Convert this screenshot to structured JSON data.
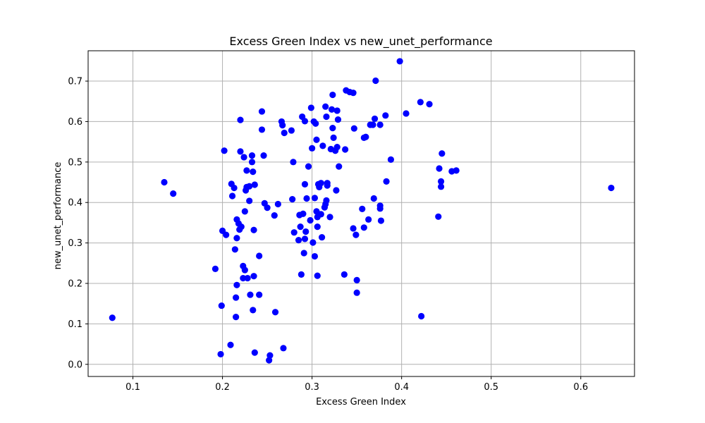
{
  "chart_data": {
    "type": "scatter",
    "title": "Excess Green Index vs new_unet_performance",
    "xlabel": "Excess Green Index",
    "ylabel": "new_unet_performance",
    "xlim": [
      0.05,
      0.66
    ],
    "ylim": [
      -0.03,
      0.775
    ],
    "xticks": [
      0.1,
      0.2,
      0.3,
      0.4,
      0.5,
      0.6
    ],
    "xtick_labels": [
      "0.1",
      "0.2",
      "0.3",
      "0.4",
      "0.5",
      "0.6"
    ],
    "yticks": [
      0.0,
      0.1,
      0.2,
      0.3,
      0.4,
      0.5,
      0.6,
      0.7
    ],
    "ytick_labels": [
      "0.0",
      "0.1",
      "0.2",
      "0.3",
      "0.4",
      "0.5",
      "0.6",
      "0.7"
    ],
    "grid": true,
    "marker_color": "#0000ff",
    "points": [
      [
        0.077,
        0.115
      ],
      [
        0.135,
        0.45
      ],
      [
        0.145,
        0.422
      ],
      [
        0.192,
        0.236
      ],
      [
        0.198,
        0.025
      ],
      [
        0.199,
        0.145
      ],
      [
        0.2,
        0.33
      ],
      [
        0.202,
        0.528
      ],
      [
        0.204,
        0.32
      ],
      [
        0.209,
        0.048
      ],
      [
        0.21,
        0.446
      ],
      [
        0.211,
        0.416
      ],
      [
        0.213,
        0.436
      ],
      [
        0.214,
        0.284
      ],
      [
        0.215,
        0.165
      ],
      [
        0.215,
        0.117
      ],
      [
        0.216,
        0.196
      ],
      [
        0.216,
        0.312
      ],
      [
        0.216,
        0.358
      ],
      [
        0.218,
        0.348
      ],
      [
        0.219,
        0.333
      ],
      [
        0.22,
        0.604
      ],
      [
        0.22,
        0.526
      ],
      [
        0.221,
        0.34
      ],
      [
        0.223,
        0.243
      ],
      [
        0.223,
        0.213
      ],
      [
        0.224,
        0.512
      ],
      [
        0.225,
        0.378
      ],
      [
        0.225,
        0.233
      ],
      [
        0.226,
        0.43
      ],
      [
        0.227,
        0.438
      ],
      [
        0.227,
        0.479
      ],
      [
        0.228,
        0.213
      ],
      [
        0.23,
        0.44
      ],
      [
        0.23,
        0.404
      ],
      [
        0.231,
        0.172
      ],
      [
        0.233,
        0.516
      ],
      [
        0.233,
        0.5
      ],
      [
        0.234,
        0.476
      ],
      [
        0.234,
        0.134
      ],
      [
        0.235,
        0.218
      ],
      [
        0.235,
        0.332
      ],
      [
        0.236,
        0.029
      ],
      [
        0.236,
        0.444
      ],
      [
        0.241,
        0.268
      ],
      [
        0.241,
        0.172
      ],
      [
        0.244,
        0.625
      ],
      [
        0.244,
        0.58
      ],
      [
        0.246,
        0.516
      ],
      [
        0.247,
        0.398
      ],
      [
        0.25,
        0.387
      ],
      [
        0.252,
        0.01
      ],
      [
        0.253,
        0.022
      ],
      [
        0.258,
        0.368
      ],
      [
        0.259,
        0.129
      ],
      [
        0.262,
        0.396
      ],
      [
        0.266,
        0.6
      ],
      [
        0.267,
        0.591
      ],
      [
        0.268,
        0.04
      ],
      [
        0.269,
        0.572
      ],
      [
        0.277,
        0.578
      ],
      [
        0.278,
        0.408
      ],
      [
        0.279,
        0.5
      ],
      [
        0.28,
        0.326
      ],
      [
        0.285,
        0.307
      ],
      [
        0.286,
        0.369
      ],
      [
        0.287,
        0.34
      ],
      [
        0.288,
        0.222
      ],
      [
        0.289,
        0.612
      ],
      [
        0.29,
        0.372
      ],
      [
        0.291,
        0.275
      ],
      [
        0.292,
        0.601
      ],
      [
        0.292,
        0.31
      ],
      [
        0.292,
        0.445
      ],
      [
        0.293,
        0.328
      ],
      [
        0.294,
        0.41
      ],
      [
        0.296,
        0.489
      ],
      [
        0.298,
        0.356
      ],
      [
        0.299,
        0.634
      ],
      [
        0.3,
        0.534
      ],
      [
        0.301,
        0.301
      ],
      [
        0.302,
        0.6
      ],
      [
        0.303,
        0.267
      ],
      [
        0.303,
        0.411
      ],
      [
        0.304,
        0.595
      ],
      [
        0.305,
        0.378
      ],
      [
        0.305,
        0.555
      ],
      [
        0.306,
        0.219
      ],
      [
        0.306,
        0.364
      ],
      [
        0.306,
        0.34
      ],
      [
        0.307,
        0.445
      ],
      [
        0.308,
        0.438
      ],
      [
        0.31,
        0.448
      ],
      [
        0.31,
        0.371
      ],
      [
        0.311,
        0.314
      ],
      [
        0.312,
        0.54
      ],
      [
        0.314,
        0.388
      ],
      [
        0.315,
        0.637
      ],
      [
        0.315,
        0.396
      ],
      [
        0.316,
        0.405
      ],
      [
        0.316,
        0.612
      ],
      [
        0.317,
        0.442
      ],
      [
        0.317,
        0.448
      ],
      [
        0.32,
        0.364
      ],
      [
        0.321,
        0.532
      ],
      [
        0.322,
        0.63
      ],
      [
        0.323,
        0.584
      ],
      [
        0.323,
        0.666
      ],
      [
        0.324,
        0.56
      ],
      [
        0.326,
        0.528
      ],
      [
        0.327,
        0.43
      ],
      [
        0.328,
        0.537
      ],
      [
        0.328,
        0.627
      ],
      [
        0.329,
        0.605
      ],
      [
        0.33,
        0.489
      ],
      [
        0.336,
        0.222
      ],
      [
        0.337,
        0.531
      ],
      [
        0.338,
        0.677
      ],
      [
        0.342,
        0.673
      ],
      [
        0.346,
        0.671
      ],
      [
        0.346,
        0.336
      ],
      [
        0.347,
        0.583
      ],
      [
        0.349,
        0.32
      ],
      [
        0.35,
        0.177
      ],
      [
        0.35,
        0.208
      ],
      [
        0.356,
        0.384
      ],
      [
        0.358,
        0.56
      ],
      [
        0.358,
        0.338
      ],
      [
        0.36,
        0.562
      ],
      [
        0.363,
        0.358
      ],
      [
        0.365,
        0.592
      ],
      [
        0.368,
        0.592
      ],
      [
        0.369,
        0.41
      ],
      [
        0.37,
        0.607
      ],
      [
        0.371,
        0.701
      ],
      [
        0.376,
        0.592
      ],
      [
        0.376,
        0.392
      ],
      [
        0.376,
        0.385
      ],
      [
        0.377,
        0.355
      ],
      [
        0.382,
        0.615
      ],
      [
        0.383,
        0.452
      ],
      [
        0.388,
        0.506
      ],
      [
        0.398,
        0.749
      ],
      [
        0.405,
        0.62
      ],
      [
        0.421,
        0.648
      ],
      [
        0.422,
        0.119
      ],
      [
        0.431,
        0.643
      ],
      [
        0.441,
        0.365
      ],
      [
        0.442,
        0.484
      ],
      [
        0.444,
        0.452
      ],
      [
        0.444,
        0.439
      ],
      [
        0.445,
        0.521
      ],
      [
        0.456,
        0.477
      ],
      [
        0.461,
        0.479
      ],
      [
        0.634,
        0.436
      ]
    ]
  }
}
